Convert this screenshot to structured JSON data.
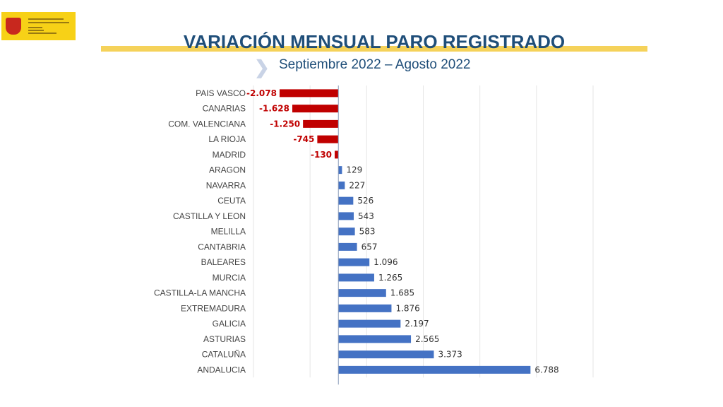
{
  "header": {
    "title": "VARIACIÓN MENSUAL PARO REGISTRADO",
    "subtitle": "Septiembre 2022 – Agosto 2022",
    "logo_text": "GOBIERNO DE ESPAÑA MINISTERIO DE TRABAJO Y ECONOMÍA SOCIAL"
  },
  "colors": {
    "negative": "#c00000",
    "positive": "#4472c4",
    "title": "#1f4e79",
    "accent": "#f5d25a"
  },
  "chart_data": {
    "type": "bar",
    "orientation": "horizontal",
    "categories": [
      "PAIS VASCO",
      "CANARIAS",
      "COM. VALENCIANA",
      "LA RIOJA",
      "MADRID",
      "ARAGON",
      "NAVARRA",
      "CEUTA",
      "CASTILLA Y LEON",
      "MELILLA",
      "CANTABRIA",
      "BALEARES",
      "MURCIA",
      "CASTILLA-LA MANCHA",
      "EXTREMADURA",
      "GALICIA",
      "ASTURIAS",
      "CATALUÑA",
      "ANDALUCIA"
    ],
    "values": [
      -2078,
      -1628,
      -1250,
      -745,
      -130,
      129,
      227,
      526,
      543,
      583,
      657,
      1096,
      1265,
      1685,
      1876,
      2197,
      2565,
      3373,
      6788
    ],
    "labels": [
      "-2.078",
      "-1.628",
      "-1.250",
      "-745",
      "-130",
      "129",
      "227",
      "526",
      "543",
      "583",
      "657",
      "1.096",
      "1.265",
      "1.685",
      "1.876",
      "2.197",
      "2.565",
      "3.373",
      "6.788"
    ],
    "xlim": [
      -3000,
      9000
    ],
    "grid": true,
    "legend": "none"
  }
}
